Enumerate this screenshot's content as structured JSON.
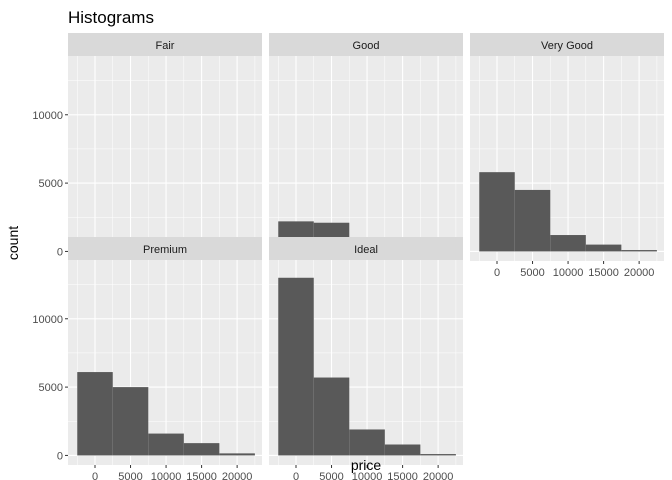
{
  "chart_data": {
    "type": "bar",
    "title": "Histograms",
    "xlabel": "price",
    "ylabel": "count",
    "xlim": [
      -3800,
      23500
    ],
    "ylim": [
      -700,
      14300
    ],
    "y_ticks": [
      0,
      5000,
      10000
    ],
    "x_ticks": [
      0,
      5000,
      10000,
      15000,
      20000
    ],
    "x_tick_labels": [
      "0",
      "5000",
      "10000",
      "15000",
      "20000"
    ],
    "y_tick_labels": [
      "0",
      "5000",
      "10000"
    ],
    "bin_edges": [
      -2500,
      2500,
      7500,
      12500,
      17500,
      22500
    ],
    "bins": [
      "-2500–2500",
      "2500–7500",
      "7500–12500",
      "12500–17500",
      "17500–22500"
    ],
    "grid": true,
    "panels": [
      {
        "name": "Fair",
        "values": [
          500,
          800,
          100,
          100,
          0
        ]
      },
      {
        "name": "Good",
        "values": [
          2200,
          2100,
          300,
          150,
          0
        ]
      },
      {
        "name": "Very Good",
        "values": [
          5800,
          4500,
          1200,
          500,
          100
        ]
      },
      {
        "name": "Premium",
        "values": [
          6100,
          5000,
          1600,
          900,
          150
        ]
      },
      {
        "name": "Ideal",
        "values": [
          13000,
          5700,
          1900,
          800,
          100
        ]
      }
    ]
  },
  "colors": {
    "bar": "#595959",
    "panel_bg": "#ebebeb",
    "grid": "#ffffff",
    "strip_bg": "#d9d9d9",
    "text": "#4d4d4d",
    "title": "#000000"
  }
}
